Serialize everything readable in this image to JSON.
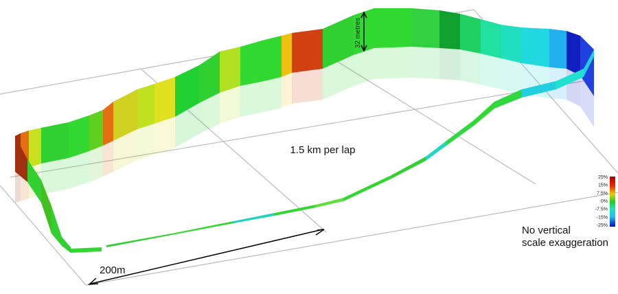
{
  "labels": {
    "lap": "1.5 km per lap",
    "scale": "200m",
    "height": "32 metres",
    "note_line1": "No vertical",
    "note_line2": "scale exaggeration"
  },
  "legend": {
    "ticks": [
      "25%",
      "15%",
      "7.5%",
      "0%",
      "-7.5%",
      "-15%",
      "-25%"
    ]
  }
}
